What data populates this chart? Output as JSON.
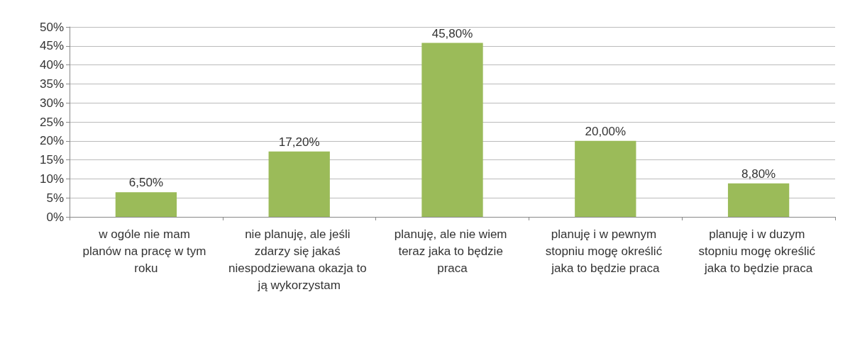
{
  "chart_data": {
    "type": "bar",
    "categories": [
      "w ogóle nie mam planów na pracę w tym roku",
      "nie planuję, ale jeśli zdarzy się jakaś niespodziewana okazja to ją wykorzystam",
      "planuję, ale nie wiem teraz jaka to będzie praca",
      "planuję i w pewnym stopniu mogę określić jaka to będzie praca",
      "planuję i w duzym stopniu mogę określić jaka to będzie praca"
    ],
    "values": [
      6.5,
      17.2,
      45.8,
      20,
      8.8
    ],
    "value_labels": [
      "6,50%",
      "17,20%",
      "45,80%",
      "20,00%",
      "8,80%"
    ],
    "color": "#9bbb59",
    "ylim": [
      0,
      50
    ],
    "yticks": [
      {
        "value": 0,
        "label": "0%"
      },
      {
        "value": 5,
        "label": "5%"
      },
      {
        "value": 10,
        "label": "10%"
      },
      {
        "value": 15,
        "label": "15%"
      },
      {
        "value": 20,
        "label": "20%"
      },
      {
        "value": 25,
        "label": "25%"
      },
      {
        "value": 30,
        "label": "30%"
      },
      {
        "value": 35,
        "label": "35%"
      },
      {
        "value": 40,
        "label": "40%"
      },
      {
        "value": 45,
        "label": "45%"
      },
      {
        "value": 50,
        "label": "50%"
      }
    ],
    "grid": "y"
  }
}
